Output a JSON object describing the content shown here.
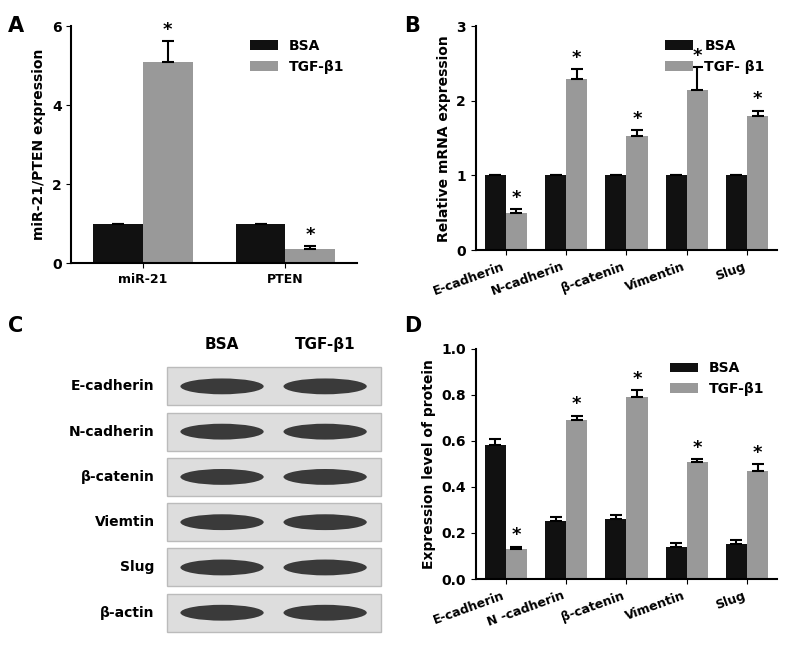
{
  "panel_labels": [
    "A",
    "B",
    "C",
    "D"
  ],
  "chart_data": [
    {
      "type": "bar",
      "y_label": "miR-21/PTEN expression",
      "categories": [
        "miR-21",
        "PTEN"
      ],
      "series": [
        {
          "name": "BSA",
          "color": "#111111",
          "values": [
            1,
            1
          ],
          "error": [
            0,
            0
          ]
        },
        {
          "name": "TGF-β1",
          "color": "#999999",
          "values": [
            5.1,
            0.37
          ],
          "error": [
            0.52,
            0.06
          ],
          "annotations": [
            "*",
            "*"
          ]
        }
      ],
      "ylim": [
        0,
        6
      ],
      "yticks": [
        0,
        2,
        4,
        6
      ],
      "legend": "upper right"
    },
    {
      "type": "bar",
      "y_label": "Relative mRNA expression",
      "categories": [
        "E-cadherin",
        "N-cadherin",
        "β-catenin",
        "Vimentin",
        "Slug"
      ],
      "series": [
        {
          "name": "BSA",
          "color": "#111111",
          "values": [
            1,
            1,
            1,
            1,
            1
          ],
          "error": [
            0,
            0,
            0,
            0,
            0
          ]
        },
        {
          "name": "TGF- β1",
          "color": "#999999",
          "values": [
            0.5,
            2.3,
            1.53,
            2.15,
            1.8
          ],
          "error": [
            0.05,
            0.13,
            0.08,
            0.3,
            0.07
          ],
          "annotations": [
            "*",
            "*",
            "*",
            "*",
            "*"
          ]
        }
      ],
      "ylim": [
        0,
        3
      ],
      "yticks": [
        0,
        1,
        2,
        3
      ],
      "legend": "upper right"
    },
    {
      "type": "bar",
      "y_label": "Expression level of protein",
      "categories": [
        "E-cadherin",
        "N -cadherin",
        "β-catenin",
        "Vimentin",
        "Slug"
      ],
      "series": [
        {
          "name": "BSA",
          "color": "#111111",
          "values": [
            0.58,
            0.25,
            0.26,
            0.14,
            0.15
          ],
          "error": [
            0.03,
            0.02,
            0.02,
            0.015,
            0.02
          ]
        },
        {
          "name": "TGF-β1",
          "color": "#999999",
          "values": [
            0.13,
            0.69,
            0.79,
            0.51,
            0.47
          ],
          "error": [
            0.01,
            0.02,
            0.03,
            0.01,
            0.03
          ],
          "annotations": [
            "*",
            "*",
            "*",
            "*",
            "*"
          ]
        }
      ],
      "ylim": [
        0,
        1.0
      ],
      "yticks": [
        {
          "value": 0,
          "label": "0.0"
        },
        {
          "value": 0.2,
          "label": "0.2"
        },
        {
          "value": 0.4,
          "label": "0.4"
        },
        {
          "value": 0.6,
          "label": "0.6"
        },
        {
          "value": 0.8,
          "label": "0.8"
        },
        {
          "value": 1.0,
          "label": "1.0"
        }
      ],
      "legend": "upper right"
    }
  ],
  "blot": {
    "columns": [
      "BSA",
      "TGF-β1"
    ],
    "rows": [
      "E-cadherin",
      "N-cadherin",
      "β-catenin",
      "Viemtin",
      "Slug",
      "β-actin"
    ]
  }
}
